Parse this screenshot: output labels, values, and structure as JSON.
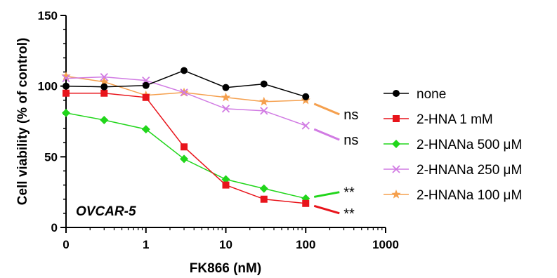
{
  "chart_data": {
    "type": "line",
    "title": "",
    "xlabel": "FK866 (nM)",
    "ylabel": "Cell viability (% of control)",
    "x_scale": "log",
    "xlim": [
      0.1,
      1000
    ],
    "ylim": [
      0,
      150
    ],
    "x_ticks": [
      0.1,
      1,
      10,
      100,
      1000
    ],
    "x_tick_labels": [
      "0",
      "1",
      "10",
      "100",
      "1000"
    ],
    "y_ticks": [
      0,
      50,
      100,
      150
    ],
    "y_tick_labels": [
      "0",
      "50",
      "100",
      "150"
    ],
    "panel_label": "OVCAR-5",
    "legend_position": "right",
    "x": [
      0.1,
      0.3,
      1,
      3,
      10,
      30,
      100
    ],
    "series": [
      {
        "name": "none",
        "color": "#000000",
        "marker": "circle",
        "values": [
          100,
          99.5,
          100.5,
          111,
          99,
          101.5,
          92.5
        ],
        "annotation": ""
      },
      {
        "name": "2-HNA 1 mM",
        "color": "#e8141b",
        "marker": "square",
        "values": [
          95,
          95,
          92,
          57,
          30,
          20,
          17
        ],
        "annotation": "**"
      },
      {
        "name": "2-HNANa 500 μM",
        "color": "#21d61b",
        "marker": "diamond",
        "values": [
          81,
          76,
          69.5,
          48.5,
          34,
          27.5,
          20.5
        ],
        "annotation": "**"
      },
      {
        "name": "2-HNANa 250 μM",
        "color": "#d17be3",
        "marker": "x",
        "values": [
          105.5,
          106.5,
          104,
          95.5,
          84,
          82.5,
          72
        ],
        "annotation": "ns"
      },
      {
        "name": "2-HNANa 100 μM",
        "color": "#f5a04e",
        "marker": "star",
        "values": [
          107,
          103,
          93.5,
          95.5,
          92,
          89,
          90
        ],
        "annotation": "ns"
      }
    ]
  }
}
